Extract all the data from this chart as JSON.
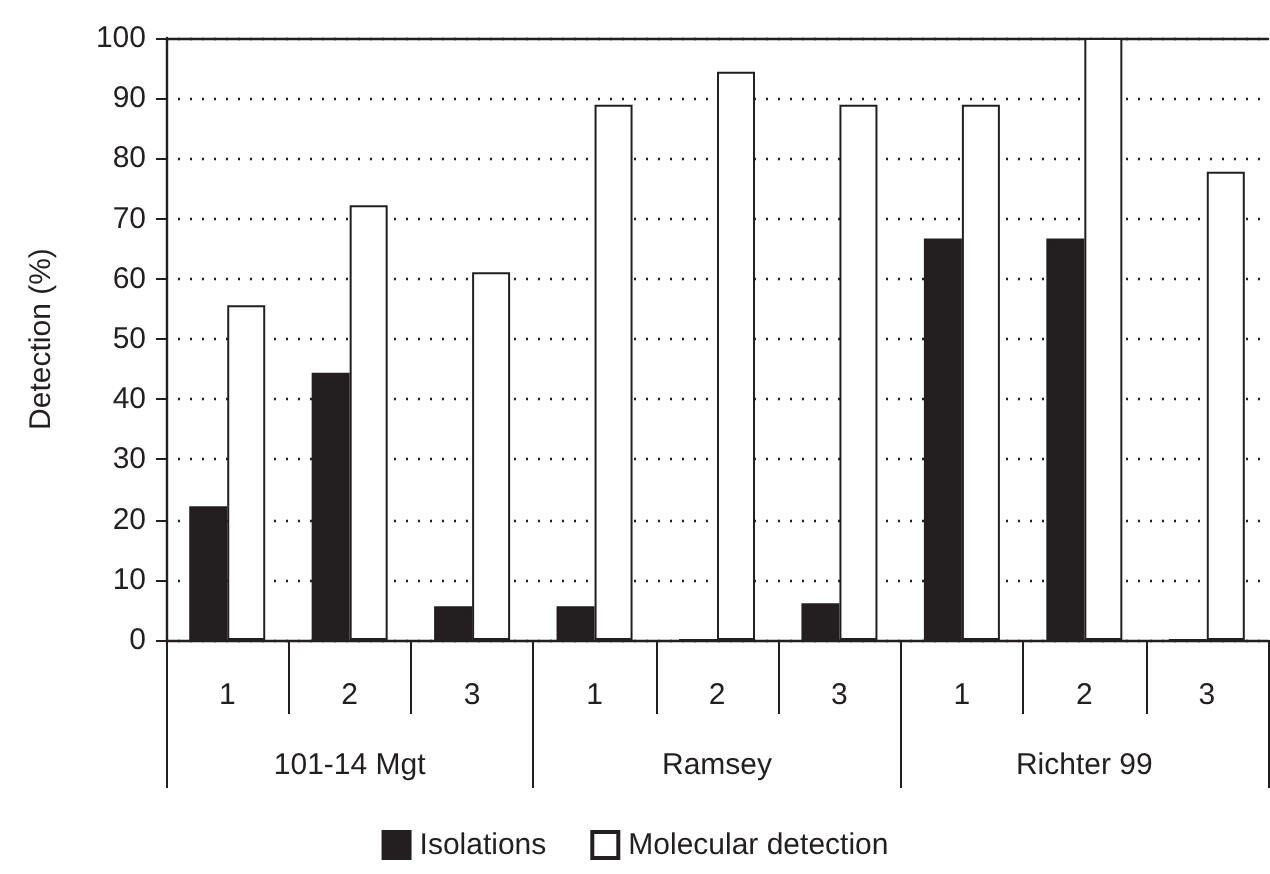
{
  "chart_data": {
    "type": "bar",
    "ylabel": "Detection (%)",
    "categories": [
      "1",
      "2",
      "3",
      "1",
      "2",
      "3",
      "1",
      "2",
      "3"
    ],
    "annotations": [
      "101-14 Mgt",
      "Ramsey",
      "Richter 99"
    ],
    "series": [
      {
        "name": "Isolations",
        "color": "#231f20",
        "values": [
          22.2,
          44.4,
          5.6,
          5.6,
          0,
          6.1,
          66.7,
          66.7,
          0
        ]
      },
      {
        "name": "Molecular detection",
        "color": "#ffffff",
        "values": [
          55.6,
          72.2,
          61.1,
          88.9,
          94.4,
          88.9,
          88.9,
          100,
          77.8
        ]
      }
    ],
    "ylim": [
      0,
      100
    ],
    "yticks": [
      0,
      10,
      20,
      30,
      40,
      50,
      60,
      70,
      80,
      90,
      100
    ],
    "grid": "y",
    "legend": "bottom"
  }
}
